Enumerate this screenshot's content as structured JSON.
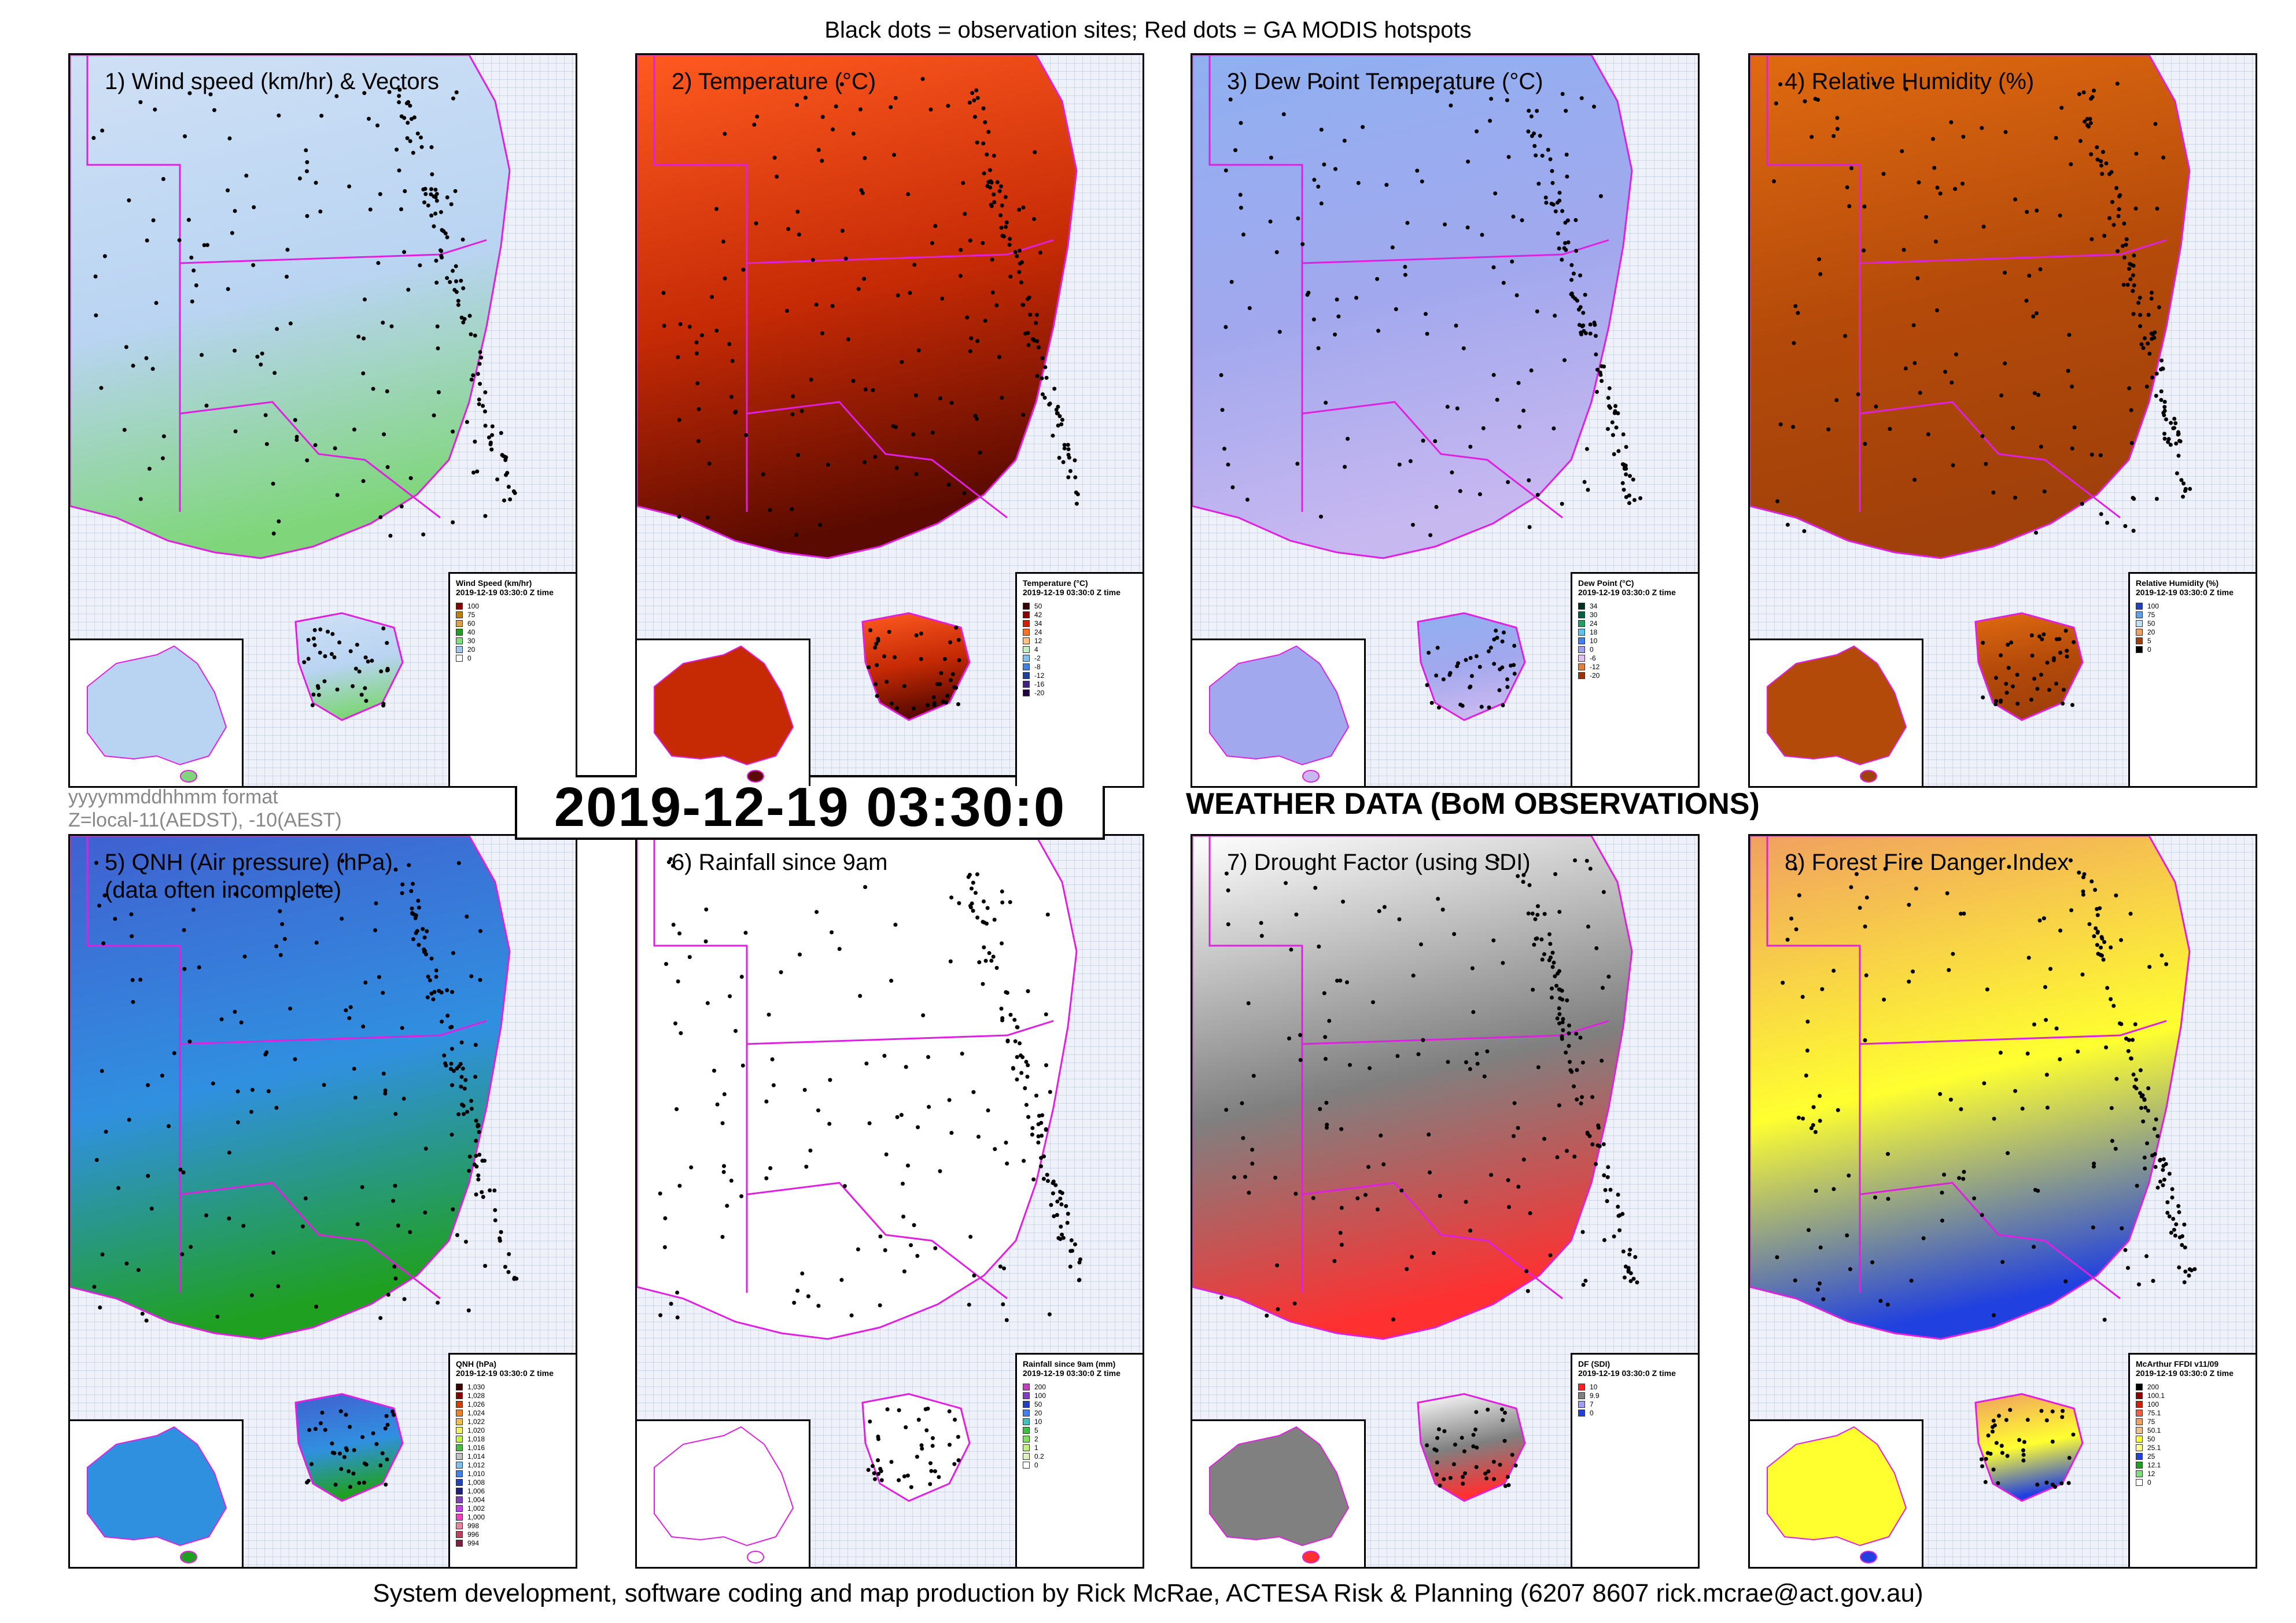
{
  "header": {
    "caption": "Black dots = observation sites; Red dots = GA MODIS hotspots"
  },
  "footer": {
    "credit": "System development, software coding and map production by Rick McRae, ACTESA Risk & Planning (6207 8607 rick.mcrae@act.gov.au)"
  },
  "timestamp": "2019-12-19 03:30:0",
  "format_note": {
    "line1": "yyyymmddhhmm format",
    "line2": "Z=local-11(AEDST), -10(AEST)"
  },
  "heading": "WEATHER DATA (BoM OBSERVATIONS)",
  "colors": {
    "panel_border": "#000000",
    "state_border": "#e020e0",
    "site_dot": "#000000",
    "hotspot": "#ff0000"
  },
  "panels": [
    {
      "title": "1) Wind speed (km/hr) & Vectors",
      "fill_top": "#cfe0f5",
      "fill_mid": "#b9d4f2",
      "fill_bottom": "#7fd67a",
      "legend": {
        "title": "Wind Speed (km/hr)",
        "subtitle": "2019-12-19 03:30:0 Z time",
        "items": [
          {
            "label": "100",
            "color": "#8b0000"
          },
          {
            "label": "75",
            "color": "#c08000"
          },
          {
            "label": "60",
            "color": "#e0a040"
          },
          {
            "label": "40",
            "color": "#20a020"
          },
          {
            "label": "30",
            "color": "#80e080"
          },
          {
            "label": "20",
            "color": "#a0c8f0"
          },
          {
            "label": "0",
            "color": "#ffffff"
          }
        ]
      }
    },
    {
      "title": "2) Temperature (°C)",
      "fill_top": "#ff5a20",
      "fill_mid": "#c52a05",
      "fill_bottom": "#5a0a00",
      "legend": {
        "title": "Temperature (°C)",
        "subtitle": "2019-12-19 03:30:0 Z time",
        "items": [
          {
            "label": "50",
            "color": "#3a0000"
          },
          {
            "label": "42",
            "color": "#8b0000"
          },
          {
            "label": "34",
            "color": "#d02000"
          },
          {
            "label": "24",
            "color": "#ff7020"
          },
          {
            "label": "12",
            "color": "#ffc080"
          },
          {
            "label": "4",
            "color": "#c0f0c0"
          },
          {
            "label": "-2",
            "color": "#80c0f0"
          },
          {
            "label": "-8",
            "color": "#4080e0"
          },
          {
            "label": "-12",
            "color": "#2040a0"
          },
          {
            "label": "-16",
            "color": "#402080"
          },
          {
            "label": "-20",
            "color": "#200040"
          }
        ]
      }
    },
    {
      "title": "3) Dew Point Temperature (°C)",
      "fill_top": "#8fb0f0",
      "fill_mid": "#a2a8ee",
      "fill_bottom": "#c8b8f0",
      "legend": {
        "title": "Dew Point (°C)",
        "subtitle": "2019-12-19 03:30:0 Z time",
        "items": [
          {
            "label": "34",
            "color": "#003020"
          },
          {
            "label": "30",
            "color": "#006040"
          },
          {
            "label": "24",
            "color": "#20a060"
          },
          {
            "label": "18",
            "color": "#60c0f0"
          },
          {
            "label": "10",
            "color": "#4080f0"
          },
          {
            "label": "0",
            "color": "#a0a0f0"
          },
          {
            "label": "-6",
            "color": "#e0c0f0"
          },
          {
            "label": "-12",
            "color": "#e08040"
          },
          {
            "label": "-20",
            "color": "#a03000"
          }
        ]
      }
    },
    {
      "title": "4) Relative Humidity (%)",
      "fill_top": "#e06a10",
      "fill_mid": "#b44a0a",
      "fill_bottom": "#a0400a",
      "legend": {
        "title": "Relative Humidity (%)",
        "subtitle": "2019-12-19 03:30:0 Z time",
        "items": [
          {
            "label": "100",
            "color": "#2040c0"
          },
          {
            "label": "75",
            "color": "#60a0f0"
          },
          {
            "label": "50",
            "color": "#c0e0f0"
          },
          {
            "label": "20",
            "color": "#f0a060"
          },
          {
            "label": "5",
            "color": "#a04010"
          },
          {
            "label": "0",
            "color": "#000000"
          }
        ]
      }
    },
    {
      "title": "5) QNH (Air pressure) (hPa)\n(data often incomplete)",
      "fill_top": "#4060d0",
      "fill_mid": "#3090e0",
      "fill_bottom": "#20a020",
      "legend": {
        "title": "QNH (hPa)",
        "subtitle": "2019-12-19 03:30:0 Z time",
        "items": [
          {
            "label": "1,030",
            "color": "#3a0000"
          },
          {
            "label": "1,028",
            "color": "#8b0000"
          },
          {
            "label": "1,026",
            "color": "#d04000"
          },
          {
            "label": "1,024",
            "color": "#f08020"
          },
          {
            "label": "1,022",
            "color": "#f0c040"
          },
          {
            "label": "1,020",
            "color": "#f0f060"
          },
          {
            "label": "1,018",
            "color": "#c0f040"
          },
          {
            "label": "1,016",
            "color": "#40c040"
          },
          {
            "label": "1,014",
            "color": "#c0c0c0"
          },
          {
            "label": "1,012",
            "color": "#80c0f0"
          },
          {
            "label": "1,010",
            "color": "#4080f0"
          },
          {
            "label": "1,008",
            "color": "#2040c0"
          },
          {
            "label": "1,006",
            "color": "#202080"
          },
          {
            "label": "1,004",
            "color": "#8040c0"
          },
          {
            "label": "1,002",
            "color": "#c040f0"
          },
          {
            "label": "1,000",
            "color": "#f040c0"
          },
          {
            "label": "998",
            "color": "#f080a0"
          },
          {
            "label": "996",
            "color": "#c04060"
          },
          {
            "label": "994",
            "color": "#802040"
          }
        ]
      }
    },
    {
      "title": "6) Rainfall since 9am",
      "fill_top": "#ffffff",
      "fill_mid": "#ffffff",
      "fill_bottom": "#ffffff",
      "legend": {
        "title": "Rainfall since 9am (mm)",
        "subtitle": "2019-12-19 03:30:0 Z time",
        "items": [
          {
            "label": "200",
            "color": "#c040c0"
          },
          {
            "label": "100",
            "color": "#8040c0"
          },
          {
            "label": "50",
            "color": "#2040c0"
          },
          {
            "label": "20",
            "color": "#4080f0"
          },
          {
            "label": "10",
            "color": "#40c0c0"
          },
          {
            "label": "5",
            "color": "#40c040"
          },
          {
            "label": "2",
            "color": "#80e060"
          },
          {
            "label": "1",
            "color": "#c0f080"
          },
          {
            "label": "0.2",
            "color": "#e0f0c0"
          },
          {
            "label": "0",
            "color": "#ffffff"
          }
        ]
      }
    },
    {
      "title": "7) Drought Factor (using SDI)",
      "fill_top": "#ffffff",
      "fill_mid": "#808080",
      "fill_bottom": "#ff3030",
      "legend": {
        "title": "DF (SDI)",
        "subtitle": "2019-12-19 03:30:0 Z time",
        "items": [
          {
            "label": "10",
            "color": "#ff2020"
          },
          {
            "label": "9.9",
            "color": "#808080"
          },
          {
            "label": "7",
            "color": "#a0a0f0"
          },
          {
            "label": "0",
            "color": "#2040e0"
          }
        ]
      }
    },
    {
      "title": "8) Forest Fire Danger Index",
      "fill_top": "#f0a060",
      "fill_mid": "#ffff30",
      "fill_bottom": "#2040e0",
      "legend": {
        "title": "McArthur FFDI v11/09",
        "subtitle": "2019-12-19 03:30:0 Z time",
        "items": [
          {
            "label": "200",
            "color": "#000000"
          },
          {
            "label": "100.1",
            "color": "#8b0000"
          },
          {
            "label": "100",
            "color": "#d02000"
          },
          {
            "label": "75.1",
            "color": "#f06040"
          },
          {
            "label": "75",
            "color": "#f0a060"
          },
          {
            "label": "50.1",
            "color": "#f0c090"
          },
          {
            "label": "50",
            "color": "#ffff30"
          },
          {
            "label": "25.1",
            "color": "#ffff90"
          },
          {
            "label": "25",
            "color": "#2040e0"
          },
          {
            "label": "12.1",
            "color": "#20a020"
          },
          {
            "label": "12",
            "color": "#80e080"
          },
          {
            "label": "0",
            "color": "#ffffff"
          }
        ]
      }
    }
  ]
}
